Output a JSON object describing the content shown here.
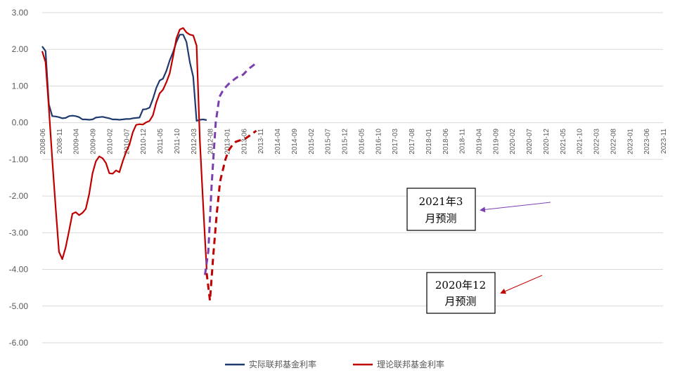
{
  "chart_data": {
    "type": "line",
    "ylim": [
      -6,
      3
    ],
    "yticks": [
      "3.00",
      "2.00",
      "1.00",
      "0.00",
      "-1.00",
      "-2.00",
      "-3.00",
      "-4.00",
      "-5.00",
      "-6.00"
    ],
    "xticks": [
      "2008-06",
      "2008-11",
      "2009-04",
      "2009-09",
      "2010-02",
      "2010-07",
      "2010-12",
      "2011-05",
      "2011-10",
      "2012-03",
      "2012-08",
      "2013-01",
      "2013-06",
      "2013-11",
      "2014-04",
      "2014-09",
      "2015-02",
      "2015-07",
      "2015-12",
      "2016-05",
      "2016-10",
      "2017-03",
      "2017-08",
      "2018-01",
      "2018-06",
      "2018-11",
      "2019-04",
      "2019-09",
      "2020-02",
      "2020-07",
      "2020-12",
      "2021-05",
      "2021-10",
      "2022-03",
      "2022-08",
      "2023-01",
      "2023-06",
      "2023-11"
    ],
    "grid": true,
    "legend_position": "bottom",
    "colors": {
      "actual": "#1f3a6e",
      "theory": "#c00000",
      "forecast_mar_2021": "#7b3fb0",
      "forecast_dec_2020": "#c00000"
    },
    "series": [
      {
        "name": "实际联邦基金利率",
        "style": "solid",
        "points": [
          [
            0,
            2.08
          ],
          [
            1,
            1.95
          ],
          [
            2,
            0.5
          ],
          [
            3,
            0.18
          ],
          [
            4,
            0.17
          ],
          [
            5,
            0.15
          ],
          [
            6,
            0.12
          ],
          [
            7,
            0.13
          ],
          [
            8,
            0.18
          ],
          [
            9,
            0.19
          ],
          [
            10,
            0.18
          ],
          [
            11,
            0.15
          ],
          [
            12,
            0.09
          ],
          [
            13,
            0.09
          ],
          [
            14,
            0.08
          ],
          [
            15,
            0.09
          ],
          [
            16,
            0.14
          ],
          [
            17,
            0.15
          ],
          [
            18,
            0.16
          ],
          [
            19,
            0.14
          ],
          [
            20,
            0.12
          ],
          [
            21,
            0.09
          ],
          [
            22,
            0.09
          ],
          [
            23,
            0.08
          ],
          [
            24,
            0.09
          ],
          [
            25,
            0.1
          ],
          [
            26,
            0.1
          ],
          [
            27,
            0.12
          ],
          [
            28,
            0.13
          ],
          [
            29,
            0.14
          ],
          [
            30,
            0.36
          ],
          [
            31,
            0.37
          ],
          [
            32,
            0.41
          ],
          [
            33,
            0.65
          ],
          [
            34,
            0.95
          ],
          [
            35,
            1.15
          ],
          [
            36,
            1.2
          ],
          [
            37,
            1.41
          ],
          [
            38,
            1.7
          ],
          [
            39,
            1.92
          ],
          [
            40,
            2.2
          ],
          [
            41,
            2.4
          ],
          [
            42,
            2.4
          ],
          [
            43,
            2.2
          ],
          [
            44,
            1.65
          ],
          [
            45,
            1.25
          ],
          [
            46,
            0.05
          ],
          [
            47,
            0.08
          ],
          [
            48,
            0.09
          ],
          [
            49,
            0.07
          ]
        ]
      },
      {
        "name": "理论联邦基金利率",
        "style": "solid",
        "points": [
          [
            0,
            1.95
          ],
          [
            1,
            1.65
          ],
          [
            2,
            0.4
          ],
          [
            3,
            -1.0
          ],
          [
            4,
            -2.3
          ],
          [
            5,
            -3.52
          ],
          [
            6,
            -3.72
          ],
          [
            7,
            -3.4
          ],
          [
            8,
            -2.95
          ],
          [
            9,
            -2.48
          ],
          [
            10,
            -2.44
          ],
          [
            11,
            -2.52
          ],
          [
            12,
            -2.46
          ],
          [
            13,
            -2.35
          ],
          [
            14,
            -1.95
          ],
          [
            15,
            -1.38
          ],
          [
            16,
            -1.05
          ],
          [
            17,
            -0.92
          ],
          [
            18,
            -0.97
          ],
          [
            19,
            -1.1
          ],
          [
            20,
            -1.38
          ],
          [
            21,
            -1.39
          ],
          [
            22,
            -1.3
          ],
          [
            23,
            -1.35
          ],
          [
            24,
            -1.05
          ],
          [
            25,
            -0.8
          ],
          [
            26,
            -0.6
          ],
          [
            27,
            -0.26
          ],
          [
            28,
            -0.06
          ],
          [
            29,
            -0.04
          ],
          [
            30,
            -0.05
          ],
          [
            31,
            0.01
          ],
          [
            32,
            0.05
          ],
          [
            33,
            0.2
          ],
          [
            34,
            0.55
          ],
          [
            35,
            0.8
          ],
          [
            36,
            0.9
          ],
          [
            37,
            1.1
          ],
          [
            38,
            1.35
          ],
          [
            39,
            1.8
          ],
          [
            40,
            2.3
          ],
          [
            41,
            2.54
          ],
          [
            42,
            2.58
          ],
          [
            43,
            2.46
          ],
          [
            44,
            2.4
          ],
          [
            45,
            2.38
          ],
          [
            46,
            2.1
          ],
          [
            47,
            -0.5
          ],
          [
            48,
            -2.3
          ],
          [
            49,
            -4.0
          ]
        ]
      },
      {
        "style": "dashed",
        "points": [
          [
            48.5,
            -4.15
          ],
          [
            49.5,
            -3.5
          ],
          [
            50.5,
            -1.7
          ],
          [
            51.7,
            0.0
          ],
          [
            52.8,
            0.7
          ],
          [
            54.0,
            0.9
          ],
          [
            55.5,
            1.05
          ],
          [
            57.5,
            1.2
          ],
          [
            58.3,
            1.25
          ],
          [
            59.2,
            1.27
          ],
          [
            60,
            1.32
          ],
          [
            61,
            1.42
          ],
          [
            62,
            1.5
          ],
          [
            63,
            1.57
          ],
          [
            64,
            1.65
          ]
        ]
      },
      {
        "style": "dashed",
        "points": [
          [
            49,
            -4.1
          ],
          [
            50,
            -4.85
          ],
          [
            51,
            -3.6
          ],
          [
            52,
            -2.5
          ],
          [
            53,
            -1.6
          ],
          [
            54.6,
            -1.0
          ],
          [
            55.6,
            -0.75
          ],
          [
            56.6,
            -0.62
          ],
          [
            57.7,
            -0.52
          ],
          [
            59,
            -0.48
          ],
          [
            60.4,
            -0.44
          ],
          [
            61.4,
            -0.38
          ],
          [
            62.6,
            -0.3
          ],
          [
            63.8,
            -0.22
          ]
        ]
      }
    ],
    "annotations": [
      {
        "id": "mar2021",
        "lines": [
          "2021年3",
          "月预测"
        ]
      },
      {
        "id": "dec2020",
        "lines": [
          "2020年12",
          "月预测"
        ]
      }
    ]
  }
}
